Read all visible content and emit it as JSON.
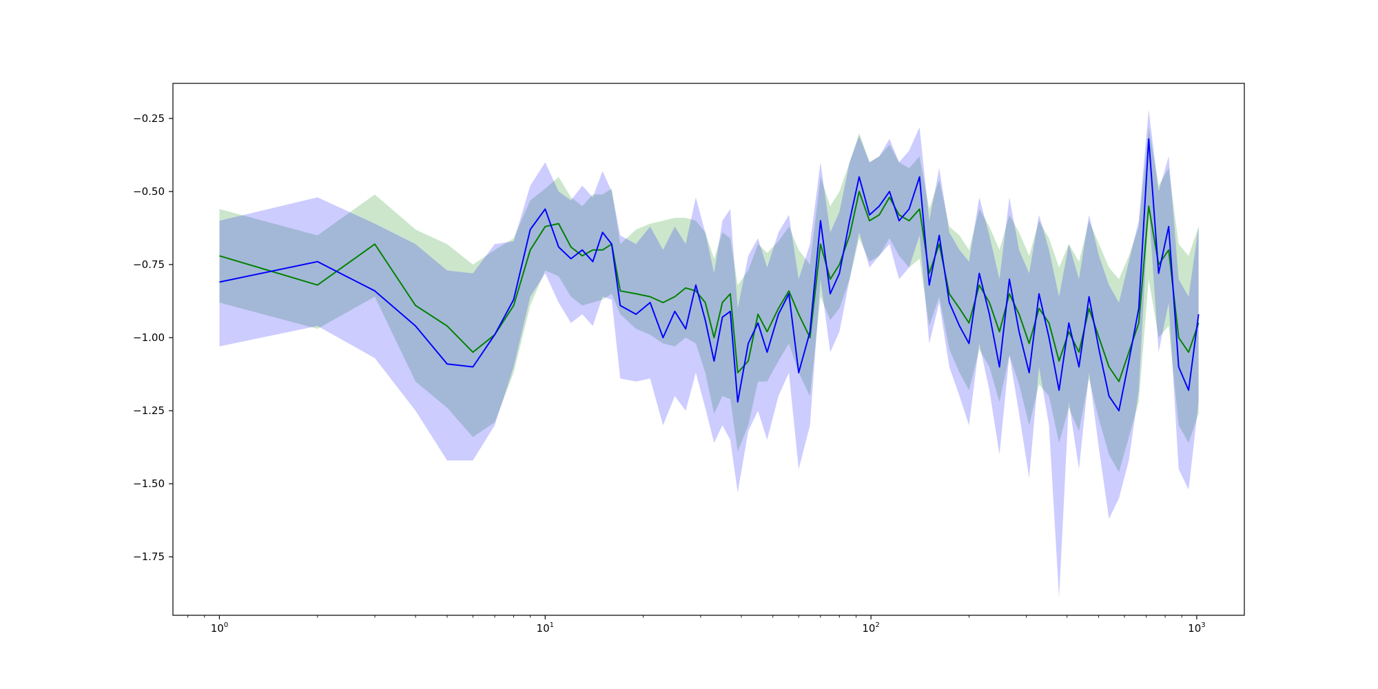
{
  "chart_data": {
    "type": "line",
    "title": "",
    "xlabel": "",
    "ylabel": "",
    "x_scale": "log",
    "xlim": [
      0.72,
      1400
    ],
    "ylim": [
      -1.95,
      -0.13
    ],
    "grid": false,
    "legend": "none",
    "x_tick_labels": [
      {
        "base": "10",
        "exp": "0",
        "value": 1
      },
      {
        "base": "10",
        "exp": "1",
        "value": 10
      },
      {
        "base": "10",
        "exp": "2",
        "value": 100
      },
      {
        "base": "10",
        "exp": "3",
        "value": 1000
      }
    ],
    "y_ticks": [
      -1.75,
      -1.5,
      -1.25,
      -1.0,
      -0.75,
      -0.5,
      -0.25
    ],
    "y_tick_labels": [
      "−1.75",
      "−1.50",
      "−1.25",
      "−1.00",
      "−0.75",
      "−0.50",
      "−0.25"
    ],
    "x": [
      1,
      2,
      3,
      4,
      5,
      6,
      7,
      8,
      9,
      10,
      11,
      12,
      13,
      14,
      15,
      16,
      17,
      19,
      21,
      23,
      25,
      27,
      29,
      31,
      33,
      35,
      37,
      39,
      42,
      45,
      48,
      52,
      56,
      60,
      65,
      70,
      75,
      80,
      86,
      92,
      99,
      106,
      114,
      122,
      131,
      141,
      151,
      162,
      174,
      187,
      200,
      215,
      231,
      248,
      266,
      285,
      306,
      328,
      352,
      378,
      405,
      435,
      467,
      501,
      538,
      577,
      619,
      664,
      712,
      764,
      820,
      880,
      944,
      1013
    ],
    "series": [
      {
        "color": "#008000",
        "band_color": "#008000",
        "values": [
          -0.72,
          -0.82,
          -0.68,
          -0.89,
          -0.96,
          -1.05,
          -0.99,
          -0.89,
          -0.7,
          -0.62,
          -0.61,
          -0.69,
          -0.72,
          -0.7,
          -0.7,
          -0.68,
          -0.84,
          -0.85,
          -0.86,
          -0.88,
          -0.86,
          -0.83,
          -0.84,
          -0.88,
          -1.0,
          -0.88,
          -0.85,
          -1.12,
          -1.08,
          -0.92,
          -0.98,
          -0.9,
          -0.84,
          -0.92,
          -1.0,
          -0.68,
          -0.8,
          -0.75,
          -0.65,
          -0.5,
          -0.6,
          -0.58,
          -0.52,
          -0.58,
          -0.6,
          -0.56,
          -0.78,
          -0.68,
          -0.85,
          -0.9,
          -0.95,
          -0.82,
          -0.88,
          -0.98,
          -0.85,
          -0.92,
          -1.02,
          -0.9,
          -0.95,
          -1.08,
          -0.98,
          -1.05,
          -0.9,
          -1.0,
          -1.1,
          -1.15,
          -1.05,
          -0.95,
          -0.55,
          -0.75,
          -0.7,
          -1.0,
          -1.05,
          -0.95
        ],
        "lower": [
          -0.88,
          -0.97,
          -0.86,
          -1.15,
          -1.24,
          -1.34,
          -1.29,
          -1.12,
          -0.89,
          -0.77,
          -0.79,
          -0.86,
          -0.89,
          -0.88,
          -0.87,
          -0.85,
          -0.92,
          -0.97,
          -0.99,
          -1.02,
          -1.03,
          -1.0,
          -1.02,
          -1.12,
          -1.26,
          -1.2,
          -1.21,
          -1.39,
          -1.3,
          -1.15,
          -1.15,
          -1.08,
          -1.02,
          -1.12,
          -1.2,
          -0.86,
          -0.94,
          -0.9,
          -0.8,
          -0.66,
          -0.74,
          -0.72,
          -0.66,
          -0.72,
          -0.76,
          -0.73,
          -0.96,
          -0.86,
          -1.04,
          -1.12,
          -1.18,
          -1.04,
          -1.1,
          -1.22,
          -1.06,
          -1.16,
          -1.3,
          -1.16,
          -1.2,
          -1.36,
          -1.24,
          -1.32,
          -1.14,
          -1.28,
          -1.4,
          -1.46,
          -1.34,
          -1.22,
          -0.8,
          -1.0,
          -0.96,
          -1.3,
          -1.36,
          -1.26
        ],
        "upper": [
          -0.56,
          -0.65,
          -0.51,
          -0.63,
          -0.68,
          -0.75,
          -0.7,
          -0.66,
          -0.53,
          -0.49,
          -0.45,
          -0.52,
          -0.55,
          -0.51,
          -0.51,
          -0.49,
          -0.68,
          -0.63,
          -0.61,
          -0.6,
          -0.59,
          -0.59,
          -0.6,
          -0.64,
          -0.73,
          -0.64,
          -0.66,
          -0.82,
          -0.77,
          -0.68,
          -0.71,
          -0.67,
          -0.62,
          -0.7,
          -0.75,
          -0.45,
          -0.55,
          -0.5,
          -0.4,
          -0.3,
          -0.4,
          -0.38,
          -0.34,
          -0.4,
          -0.42,
          -0.38,
          -0.56,
          -0.46,
          -0.62,
          -0.65,
          -0.7,
          -0.56,
          -0.62,
          -0.7,
          -0.58,
          -0.64,
          -0.72,
          -0.6,
          -0.66,
          -0.76,
          -0.68,
          -0.74,
          -0.6,
          -0.68,
          -0.76,
          -0.8,
          -0.72,
          -0.62,
          -0.28,
          -0.48,
          -0.42,
          -0.68,
          -0.72,
          -0.62
        ]
      },
      {
        "color": "#0000ff",
        "band_color": "#0000ff",
        "values": [
          -0.81,
          -0.74,
          -0.84,
          -0.96,
          -1.09,
          -1.1,
          -0.99,
          -0.87,
          -0.63,
          -0.56,
          -0.69,
          -0.73,
          -0.7,
          -0.74,
          -0.64,
          -0.68,
          -0.89,
          -0.92,
          -0.88,
          -1.0,
          -0.91,
          -0.97,
          -0.82,
          -0.94,
          -1.08,
          -0.93,
          -0.91,
          -1.22,
          -1.02,
          -0.95,
          -1.05,
          -0.92,
          -0.85,
          -1.12,
          -0.98,
          -0.6,
          -0.85,
          -0.78,
          -0.6,
          -0.45,
          -0.58,
          -0.55,
          -0.5,
          -0.6,
          -0.56,
          -0.45,
          -0.82,
          -0.65,
          -0.88,
          -0.96,
          -1.02,
          -0.78,
          -0.92,
          -1.1,
          -0.8,
          -0.98,
          -1.12,
          -0.85,
          -1.0,
          -1.18,
          -0.95,
          -1.1,
          -0.86,
          -1.04,
          -1.2,
          -1.25,
          -1.08,
          -0.9,
          -0.32,
          -0.78,
          -0.62,
          -1.1,
          -1.18,
          -0.92
        ],
        "lower": [
          -1.03,
          -0.96,
          -1.07,
          -1.25,
          -1.42,
          -1.42,
          -1.3,
          -1.1,
          -0.86,
          -0.78,
          -0.88,
          -0.95,
          -0.92,
          -0.96,
          -0.86,
          -0.87,
          -1.14,
          -1.15,
          -1.14,
          -1.3,
          -1.2,
          -1.25,
          -1.12,
          -1.24,
          -1.36,
          -1.3,
          -1.35,
          -1.53,
          -1.32,
          -1.25,
          -1.35,
          -1.2,
          -1.12,
          -1.45,
          -1.3,
          -0.8,
          -1.05,
          -0.98,
          -0.8,
          -0.64,
          -0.76,
          -0.72,
          -0.68,
          -0.8,
          -0.76,
          -0.65,
          -1.02,
          -0.88,
          -1.1,
          -1.2,
          -1.3,
          -1.02,
          -1.18,
          -1.4,
          -1.06,
          -1.26,
          -1.48,
          -1.1,
          -1.3,
          -1.89,
          -1.22,
          -1.45,
          -1.12,
          -1.38,
          -1.62,
          -1.55,
          -1.42,
          -1.18,
          -0.55,
          -1.05,
          -0.88,
          -1.45,
          -1.52,
          -1.22
        ],
        "upper": [
          -0.6,
          -0.52,
          -0.61,
          -0.68,
          -0.77,
          -0.78,
          -0.68,
          -0.67,
          -0.48,
          -0.4,
          -0.5,
          -0.53,
          -0.48,
          -0.52,
          -0.43,
          -0.5,
          -0.65,
          -0.68,
          -0.62,
          -0.7,
          -0.62,
          -0.68,
          -0.52,
          -0.64,
          -0.78,
          -0.6,
          -0.56,
          -0.9,
          -0.72,
          -0.66,
          -0.76,
          -0.64,
          -0.58,
          -0.8,
          -0.68,
          -0.4,
          -0.64,
          -0.57,
          -0.4,
          -0.31,
          -0.4,
          -0.38,
          -0.32,
          -0.4,
          -0.36,
          -0.28,
          -0.6,
          -0.42,
          -0.64,
          -0.7,
          -0.74,
          -0.52,
          -0.65,
          -0.8,
          -0.52,
          -0.7,
          -0.78,
          -0.58,
          -0.7,
          -0.86,
          -0.68,
          -0.8,
          -0.58,
          -0.72,
          -0.82,
          -0.88,
          -0.74,
          -0.6,
          -0.22,
          -0.5,
          -0.38,
          -0.8,
          -0.86,
          -0.62
        ]
      }
    ]
  }
}
